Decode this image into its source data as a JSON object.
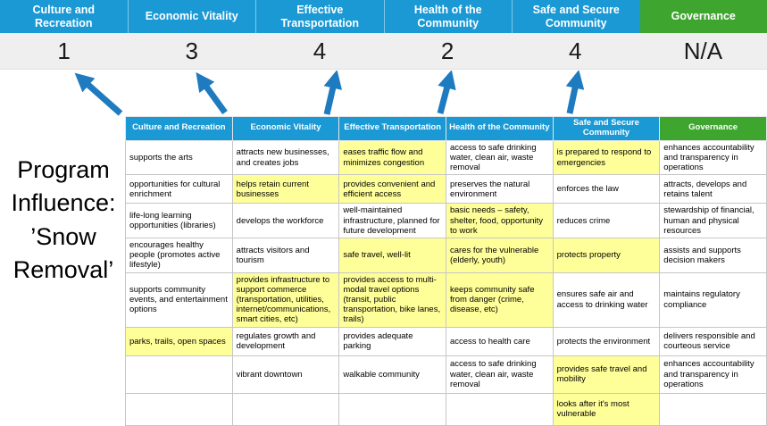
{
  "title": "Program\nInfluence:\n’Snow\nRemoval’",
  "colors": {
    "header_blue": "#1a99d5",
    "header_green": "#3ea52f",
    "highlight_yellow": "#ffff99",
    "score_band_gray": "#efefef",
    "arrow_blue": "#1f7bbf",
    "grid_border": "#c6c6c6"
  },
  "summary": {
    "columns": [
      {
        "label": "Culture and Recreation",
        "score": "1",
        "type": "blue"
      },
      {
        "label": "Economic Vitality",
        "score": "3",
        "type": "blue"
      },
      {
        "label": "Effective Transportation",
        "score": "4",
        "type": "blue"
      },
      {
        "label": "Health of the Community",
        "score": "2",
        "type": "blue"
      },
      {
        "label": "Safe and Secure Community",
        "score": "4",
        "type": "blue"
      },
      {
        "label": "Governance",
        "score": "N/A",
        "type": "green"
      }
    ]
  },
  "matrix": {
    "headers": [
      {
        "label": "Culture and Recreation",
        "type": "blue"
      },
      {
        "label": "Economic Vitality",
        "type": "blue"
      },
      {
        "label": "Effective Transportation",
        "type": "blue"
      },
      {
        "label": "Health of the Community",
        "type": "blue"
      },
      {
        "label": "Safe and Secure Community",
        "type": "blue"
      },
      {
        "label": "Governance",
        "type": "green"
      }
    ],
    "rows": [
      [
        {
          "text": "supports the arts",
          "highlight": false
        },
        {
          "text": "attracts new businesses, and creates jobs",
          "highlight": false
        },
        {
          "text": "eases traffic flow and minimizes congestion",
          "highlight": true
        },
        {
          "text": "access to safe drinking water, clean air, waste removal",
          "highlight": false
        },
        {
          "text": "is prepared to respond to emergencies",
          "highlight": true
        },
        {
          "text": "enhances accountability and transparency in operations",
          "highlight": false
        }
      ],
      [
        {
          "text": "opportunities for cultural enrichment",
          "highlight": false
        },
        {
          "text": "helps retain current businesses",
          "highlight": true
        },
        {
          "text": "provides convenient and efficient access",
          "highlight": true
        },
        {
          "text": "preserves the natural environment",
          "highlight": false
        },
        {
          "text": "enforces the law",
          "highlight": false
        },
        {
          "text": "attracts, develops and retains talent",
          "highlight": false
        }
      ],
      [
        {
          "text": "life-long learning opportunities (libraries)",
          "highlight": false
        },
        {
          "text": "develops the workforce",
          "highlight": false
        },
        {
          "text": "well-maintained infrastructure, planned for future development",
          "highlight": false
        },
        {
          "text": "basic needs – safety, shelter, food, opportunity to work",
          "highlight": true
        },
        {
          "text": "reduces crime",
          "highlight": false
        },
        {
          "text": "stewardship of financial, human and physical resources",
          "highlight": false
        }
      ],
      [
        {
          "text": "encourages healthy people (promotes active lifestyle)",
          "highlight": false
        },
        {
          "text": "attracts visitors and tourism",
          "highlight": false
        },
        {
          "text": "safe travel, well-lit",
          "highlight": true
        },
        {
          "text": "cares for the vulnerable (elderly, youth)",
          "highlight": true
        },
        {
          "text": "protects property",
          "highlight": true
        },
        {
          "text": "assists and supports decision makers",
          "highlight": false
        }
      ],
      [
        {
          "text": "supports community events, and entertainment options",
          "highlight": false
        },
        {
          "text": "provides infrastructure to support commerce (transportation, utilities, internet/communications, smart cities, etc)",
          "highlight": true
        },
        {
          "text": "provides access to multi-modal travel options (transit, public transportation, bike lanes, trails)",
          "highlight": true
        },
        {
          "text": "keeps community safe from danger (crime, disease, etc)",
          "highlight": true
        },
        {
          "text": "ensures safe air and access to drinking water",
          "highlight": false
        },
        {
          "text": "maintains regulatory compliance",
          "highlight": false
        }
      ],
      [
        {
          "text": "parks, trails, open spaces",
          "highlight": true
        },
        {
          "text": "regulates growth and development",
          "highlight": false
        },
        {
          "text": "provides adequate parking",
          "highlight": false
        },
        {
          "text": "access to health care",
          "highlight": false
        },
        {
          "text": "protects the environment",
          "highlight": false
        },
        {
          "text": "delivers responsible and courteous service",
          "highlight": false
        }
      ],
      [
        {
          "text": "",
          "highlight": false
        },
        {
          "text": "vibrant downtown",
          "highlight": false
        },
        {
          "text": "walkable community",
          "highlight": false
        },
        {
          "text": "access to safe drinking water, clean air, waste removal",
          "highlight": false
        },
        {
          "text": "provides safe travel and mobility",
          "highlight": true
        },
        {
          "text": "enhances accountability and transparency in operations",
          "highlight": false
        }
      ],
      [
        {
          "text": "",
          "highlight": false
        },
        {
          "text": "",
          "highlight": false
        },
        {
          "text": "",
          "highlight": false
        },
        {
          "text": "",
          "highlight": false
        },
        {
          "text": "looks after it's most vulnerable",
          "highlight": true
        },
        {
          "text": "",
          "highlight": false
        }
      ]
    ]
  }
}
